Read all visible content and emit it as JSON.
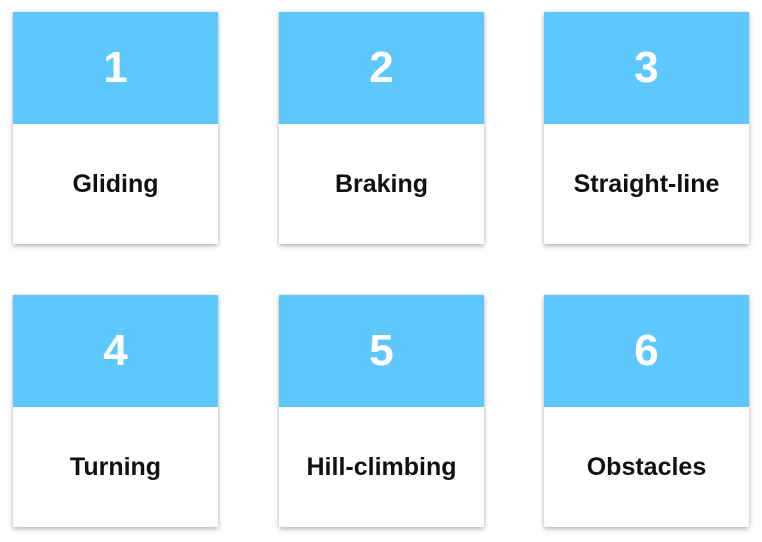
{
  "colors": {
    "header_fill": "#5ec8fd",
    "card_fill": "#ffffff",
    "label_text": "#111111",
    "number_text": "#ffffff"
  },
  "cards": [
    {
      "number": "1",
      "label": "Gliding"
    },
    {
      "number": "2",
      "label": "Braking"
    },
    {
      "number": "3",
      "label": "Straight-line"
    },
    {
      "number": "4",
      "label": "Turning"
    },
    {
      "number": "5",
      "label": "Hill-climbing"
    },
    {
      "number": "6",
      "label": "Obstacles"
    }
  ]
}
